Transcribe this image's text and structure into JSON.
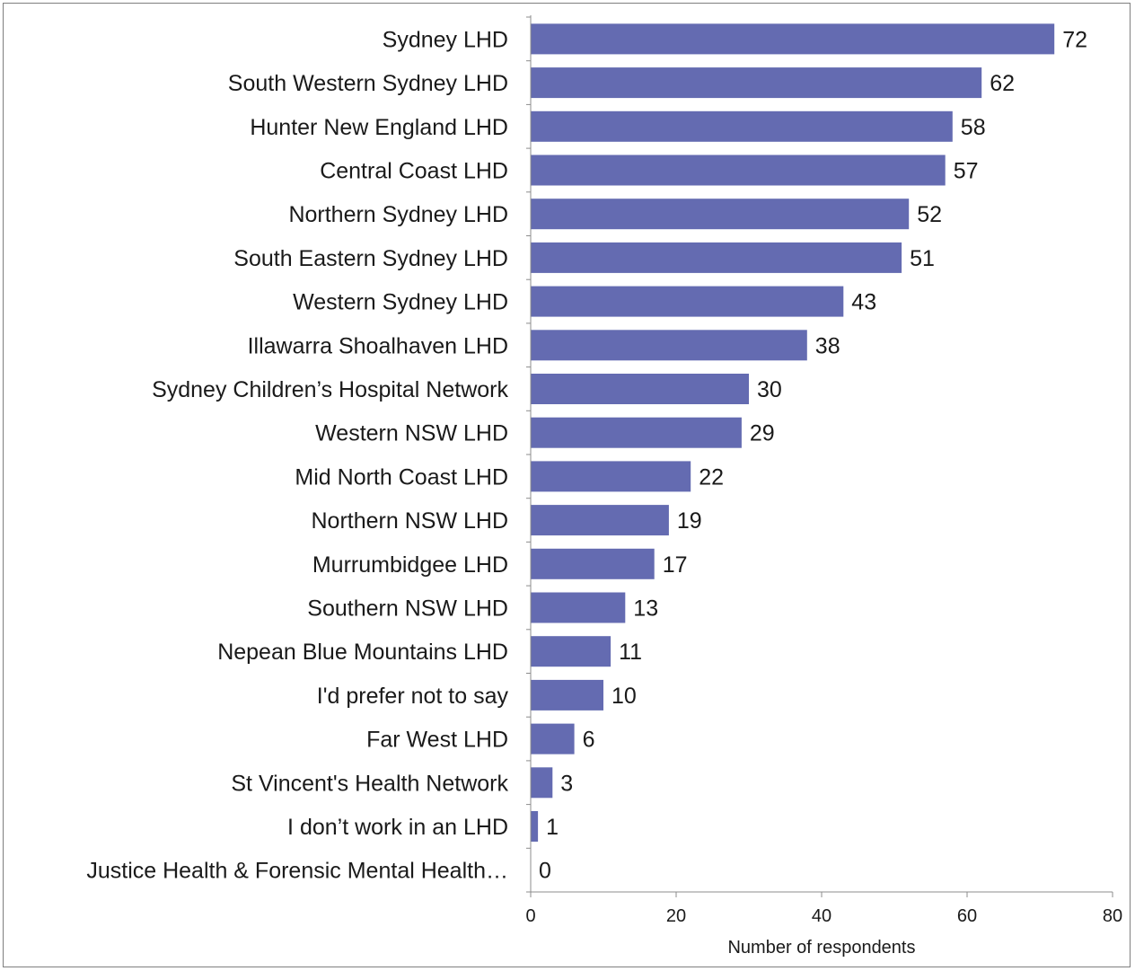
{
  "chart_data": {
    "type": "bar",
    "orientation": "horizontal",
    "title": "",
    "xlabel": "Number  of respondents",
    "ylabel": "",
    "xlim": [
      0,
      80
    ],
    "xticks": [
      0,
      20,
      40,
      60,
      80
    ],
    "grid": false,
    "legend": "none",
    "bar_color": "#646bb1",
    "categories": [
      "Sydney LHD",
      "South Western Sydney LHD",
      "Hunter New England LHD",
      "Central Coast LHD",
      "Northern Sydney LHD",
      "South Eastern Sydney LHD",
      "Western Sydney LHD",
      "Illawarra Shoalhaven LHD",
      "Sydney Children’s Hospital Network",
      "Western NSW LHD",
      "Mid North Coast LHD",
      "Northern NSW LHD",
      "Murrumbidgee LHD",
      "Southern NSW LHD",
      "Nepean Blue Mountains LHD",
      "I'd prefer not to say",
      "Far West LHD",
      "St Vincent's Health Network",
      "I don’t work in an LHD",
      "Justice Health & Forensic Mental Health…"
    ],
    "values": [
      72,
      62,
      58,
      57,
      52,
      51,
      43,
      38,
      30,
      29,
      22,
      19,
      17,
      13,
      11,
      10,
      6,
      3,
      1,
      0
    ]
  }
}
